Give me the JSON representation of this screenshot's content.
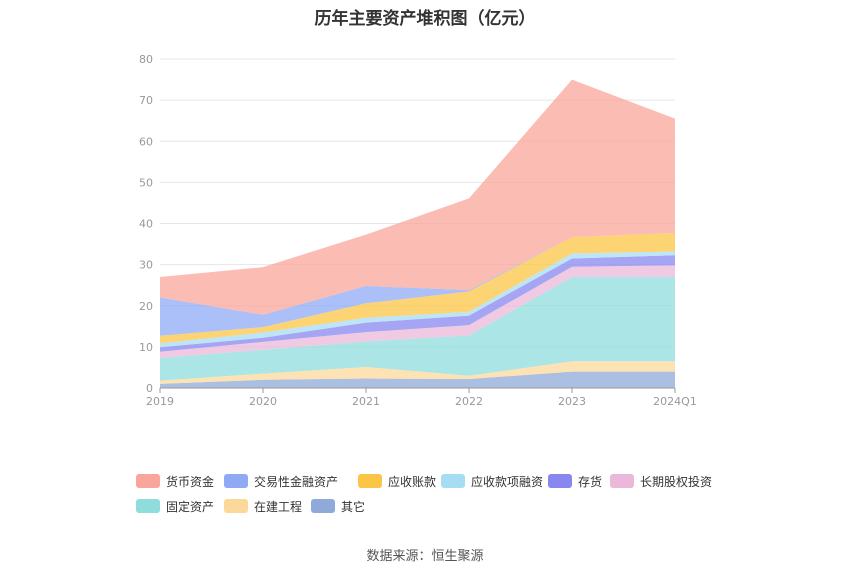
{
  "chart_data": {
    "type": "area",
    "stacked": true,
    "title": "历年主要资产堆积图（亿元）",
    "categories": [
      "2019",
      "2020",
      "2021",
      "2022",
      "2023",
      "2024Q1"
    ],
    "ylim": [
      0,
      80
    ],
    "yticks": [
      0,
      10,
      20,
      30,
      40,
      50,
      60,
      70,
      80
    ],
    "grid": true,
    "legend_position": "bottom",
    "series": [
      {
        "name": "其它",
        "color": "#8fa9d8",
        "values": [
          1.0,
          2.0,
          2.3,
          2.2,
          4.0,
          4.0
        ]
      },
      {
        "name": "在建工程",
        "color": "#fcd99a",
        "values": [
          0.8,
          1.5,
          2.8,
          0.8,
          2.5,
          2.5
        ]
      },
      {
        "name": "固定资产",
        "color": "#8fdcdc",
        "values": [
          5.5,
          5.8,
          6.2,
          9.8,
          20.5,
          20.5
        ]
      },
      {
        "name": "长期股权投资",
        "color": "#ebb8da",
        "values": [
          1.5,
          1.9,
          2.3,
          2.5,
          2.5,
          2.8
        ]
      },
      {
        "name": "存货",
        "color": "#8887f0",
        "values": [
          1.1,
          1.0,
          2.3,
          2.3,
          2.0,
          2.5
        ]
      },
      {
        "name": "应收款项融资",
        "color": "#a7dcf5",
        "values": [
          1.0,
          1.3,
          1.2,
          0.9,
          1.2,
          0.9
        ]
      },
      {
        "name": "应收账款",
        "color": "#fcc545",
        "values": [
          1.8,
          1.3,
          3.5,
          5.0,
          4.0,
          4.5
        ]
      },
      {
        "name": "交易性金融资产",
        "color": "#8fa9f5",
        "values": [
          9.3,
          3.0,
          4.2,
          0.3,
          0.0,
          0.0
        ]
      },
      {
        "name": "货币资金",
        "color": "#f9a59b",
        "values": [
          5.0,
          11.6,
          12.5,
          22.3,
          38.3,
          27.8
        ]
      }
    ]
  },
  "legend": {
    "items": [
      {
        "label": "货币资金",
        "color": "#f9a59b"
      },
      {
        "label": "交易性金融资产",
        "color": "#8fa9f5"
      },
      {
        "label": "应收账款",
        "color": "#fcc545"
      },
      {
        "label": "应收款项融资",
        "color": "#a7dcf5"
      },
      {
        "label": "存货",
        "color": "#8887f0"
      },
      {
        "label": "长期股权投资",
        "color": "#ebb8da"
      },
      {
        "label": "固定资产",
        "color": "#8fdcdc"
      },
      {
        "label": "在建工程",
        "color": "#fcd99a"
      },
      {
        "label": "其它",
        "color": "#8fa9d8"
      }
    ]
  },
  "source": "数据来源：恒生聚源"
}
